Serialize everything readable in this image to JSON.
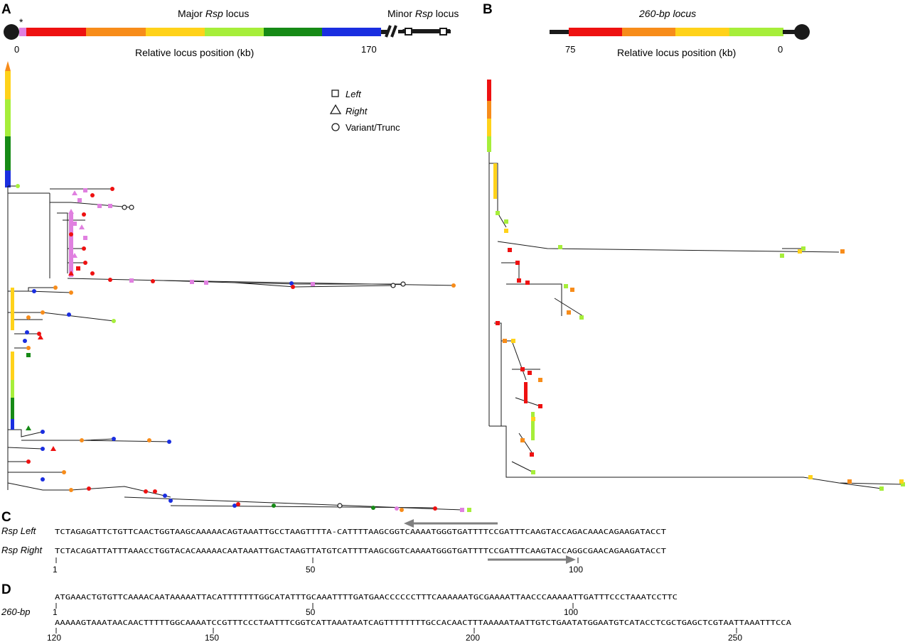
{
  "panels": {
    "A": {
      "letter": "A",
      "asterisk": "*",
      "major_locus_label": "Major Rsp locus",
      "major_locus_prefix": "Major ",
      "major_locus_italic": "Rsp",
      "major_locus_suffix": " locus",
      "minor_locus_prefix": "Minor ",
      "minor_locus_italic": "Rsp",
      "minor_locus_suffix": " locus",
      "axis_start": "0",
      "axis_end": "170",
      "axis_label": "Relative locus position (kb)",
      "legend": [
        {
          "symbol": "square",
          "label": "Left",
          "italic": true
        },
        {
          "symbol": "triangle",
          "label": "Right",
          "italic": true
        },
        {
          "symbol": "circle",
          "label": "Variant/Trunc",
          "italic": false
        }
      ]
    },
    "B": {
      "letter": "B",
      "title": "260-bp locus",
      "axis_start": "75",
      "axis_end": "0",
      "axis_label": "Relative locus position (kb)"
    },
    "C": {
      "letter": "C",
      "rows": [
        {
          "label": "Rsp Left",
          "sequence": "TCTAGAGATTCTGTTCAACTGGTAAGCAAAAACAGTAAATTGCCTAAGTTTTA-CATTTTAAGCGGTCAAAATGGGTGATTTTCCGATTTCAAGTACCAGACAAACAGAAGATACCT"
        },
        {
          "label": "Rsp Right",
          "sequence": "TCTACAGATTATTTAAACCTGGTACACAAAAACAATAAATTGACTAAGTTATGTCATTTTAAGCGGTCAAAATGGGTGATTTTCCGATTTCAAGTACCAGGCGAACAGAAGATACCT"
        }
      ],
      "ticks": [
        "1",
        "50",
        "100"
      ]
    },
    "D": {
      "letter": "D",
      "label": "260-bp",
      "line1": "ATGAAACTGTGTTCAAAACAATAAAAATTACATTTTTTTGGCATATTTGCAAATTTTGATGAACCCCCCTTTCAAAAAATGCGAAAATTAACCCAAAAATTGATTTCCCTAAATCCTTC",
      "line1_ticks": [
        "1",
        "50",
        "100"
      ],
      "line2": "AAAAAGTAAATAACAACTTTTTGGCAAAATCCGTTTCCCTAATTTCGGTCATTAAATAATCAGTTTTTTTTGCCACAACTTTAAAAATAATTGTCTGAATATGGAATGTCATACCTCGCTGAGCTCGTAATTAAATTTCCA",
      "line2_ticks": [
        "120",
        "150",
        "200",
        "250"
      ]
    }
  },
  "colors": {
    "pink": "#e080e0",
    "red": "#ee1111",
    "orange": "#f78c1a",
    "yellow": "#ffd21a",
    "lime": "#a6ee3a",
    "green": "#168a16",
    "blue": "#1a2ee0",
    "arrow": "#808080",
    "line": "#1a1a1a"
  }
}
